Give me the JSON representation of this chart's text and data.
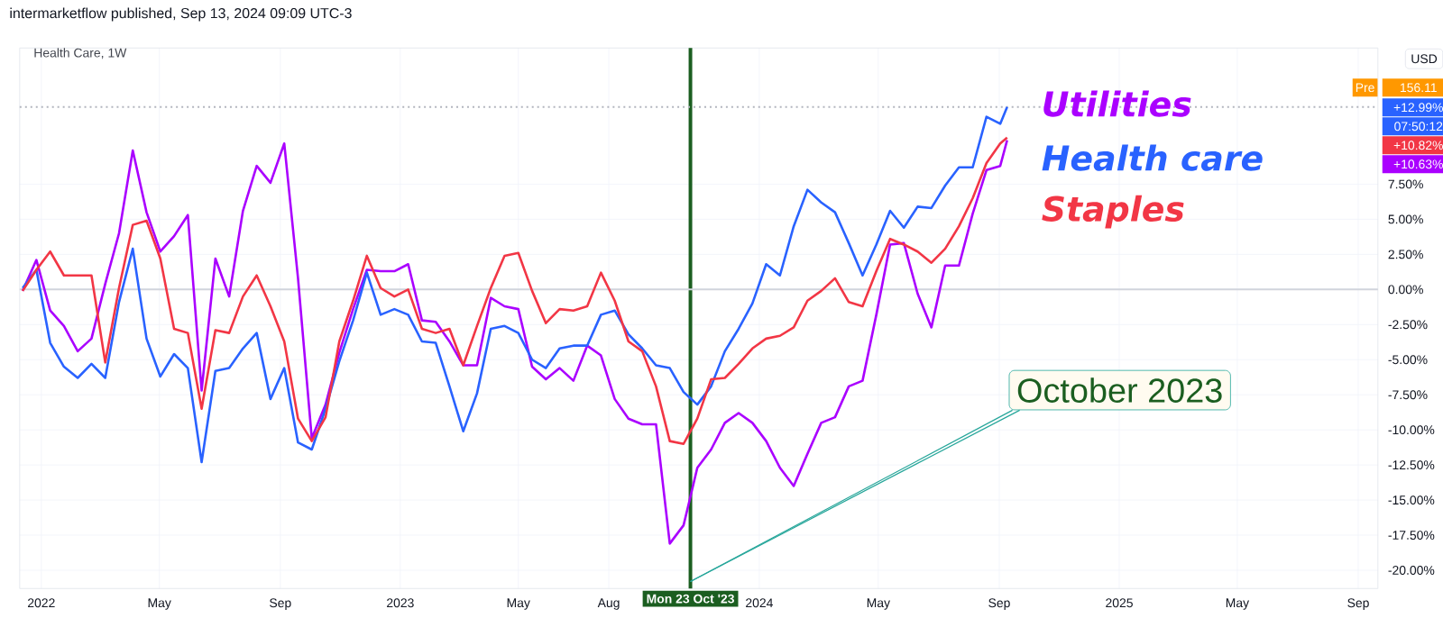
{
  "chart_data": {
    "type": "line",
    "title": "intermarketflow published, Sep 13, 2024 09:09 UTC-3",
    "subtitle": "Health Care, 1W",
    "ylabel": "USD",
    "annotations": [
      {
        "text": "October 2023",
        "x": "2023-10-23",
        "y": -20.8
      },
      "Pre",
      "156.11",
      "+12.99%",
      "07:50:12",
      "+10.82%",
      "+10.63%"
    ],
    "x": [
      "2021-12-13",
      "2021-12-27",
      "2022-01-10",
      "2022-01-24",
      "2022-02-07",
      "2022-02-21",
      "2022-03-07",
      "2022-03-21",
      "2022-04-04",
      "2022-04-18",
      "2022-05-02",
      "2022-05-16",
      "2022-05-30",
      "2022-06-13",
      "2022-06-27",
      "2022-07-11",
      "2022-07-25",
      "2022-08-08",
      "2022-08-22",
      "2022-09-05",
      "2022-09-19",
      "2022-10-03",
      "2022-10-17",
      "2022-10-31",
      "2022-11-14",
      "2022-11-28",
      "2022-12-12",
      "2022-12-26",
      "2023-01-09",
      "2023-01-23",
      "2023-02-06",
      "2023-02-20",
      "2023-03-06",
      "2023-03-20",
      "2023-04-03",
      "2023-04-17",
      "2023-05-01",
      "2023-05-15",
      "2023-05-29",
      "2023-06-12",
      "2023-06-26",
      "2023-07-10",
      "2023-07-24",
      "2023-08-07",
      "2023-08-21",
      "2023-09-04",
      "2023-09-18",
      "2023-10-02",
      "2023-10-16",
      "2023-10-30",
      "2023-11-13",
      "2023-11-27",
      "2023-12-11",
      "2023-12-25",
      "2024-01-08",
      "2024-01-22",
      "2024-02-05",
      "2024-02-19",
      "2024-03-04",
      "2024-03-18",
      "2024-04-01",
      "2024-04-15",
      "2024-04-29",
      "2024-05-13",
      "2024-05-27",
      "2024-06-10",
      "2024-06-24",
      "2024-07-08",
      "2024-07-22",
      "2024-08-05",
      "2024-08-19",
      "2024-09-02",
      "2024-09-09"
    ],
    "series": [
      {
        "name": "Utilities",
        "color": "#aa00ff",
        "values": [
          -0.1,
          2.1,
          -1.5,
          -2.6,
          -4.4,
          -3.5,
          0.4,
          4.0,
          9.9,
          5.5,
          2.7,
          3.8,
          5.3,
          -7.2,
          2.2,
          -0.5,
          5.6,
          8.8,
          7.6,
          10.4,
          0.8,
          -10.6,
          -8.2,
          -4.5,
          -1.4,
          1.4,
          1.3,
          1.3,
          1.8,
          -2.2,
          -2.3,
          -3.7,
          -5.4,
          -5.4,
          -0.6,
          -1.2,
          -1.4,
          -5.5,
          -6.4,
          -5.6,
          -6.5,
          -4.0,
          -4.7,
          -7.8,
          -9.2,
          -9.6,
          -9.6,
          -18.1,
          -16.8,
          -12.7,
          -11.4,
          -9.5,
          -8.8,
          -9.5,
          -10.8,
          -12.7,
          -14.0,
          -11.7,
          -9.5,
          -9.1,
          -6.9,
          -6.5,
          -1.8,
          3.2,
          3.3,
          -0.3,
          -2.7,
          1.7,
          1.7,
          5.4,
          8.5,
          8.8,
          10.63
        ]
      },
      {
        "name": "Health care",
        "color": "#2962ff",
        "values": [
          0.1,
          1.4,
          -3.8,
          -5.5,
          -6.3,
          -5.3,
          -6.3,
          -0.9,
          2.9,
          -3.5,
          -6.2,
          -4.6,
          -5.6,
          -12.3,
          -5.8,
          -5.6,
          -4.2,
          -3.1,
          -7.8,
          -5.6,
          -10.9,
          -11.4,
          -8.5,
          -5.1,
          -2.2,
          1.2,
          -1.8,
          -1.4,
          -1.8,
          -3.7,
          -3.8,
          -6.9,
          -10.1,
          -7.4,
          -2.8,
          -2.6,
          -3.1,
          -5.0,
          -5.6,
          -4.2,
          -4.0,
          -4.0,
          -1.8,
          -1.5,
          -3.2,
          -4.2,
          -5.4,
          -5.6,
          -7.3,
          -8.2,
          -6.9,
          -4.4,
          -2.8,
          -1.0,
          1.8,
          1.0,
          4.5,
          7.1,
          6.2,
          5.5,
          3.3,
          1.0,
          3.2,
          5.6,
          4.4,
          5.9,
          5.8,
          7.4,
          8.7,
          8.7,
          12.3,
          11.8,
          12.99
        ]
      },
      {
        "name": "Staples",
        "color": "#f23645",
        "values": [
          -0.1,
          1.4,
          2.7,
          1.0,
          1.0,
          1.0,
          -5.2,
          0.1,
          4.6,
          4.9,
          2.2,
          -2.8,
          -3.1,
          -8.5,
          -2.9,
          -3.1,
          -0.5,
          1.0,
          -1.2,
          -3.7,
          -9.2,
          -10.8,
          -9.1,
          -3.7,
          -0.8,
          2.4,
          0.1,
          -0.5,
          0.0,
          -2.8,
          -3.1,
          -2.8,
          -5.4,
          -2.6,
          0.1,
          2.4,
          2.6,
          -0.1,
          -2.4,
          -1.4,
          -1.5,
          -1.2,
          1.2,
          -0.8,
          -3.7,
          -4.4,
          -6.9,
          -10.8,
          -11.0,
          -9.2,
          -6.4,
          -6.3,
          -5.3,
          -4.2,
          -3.5,
          -3.3,
          -2.7,
          -0.8,
          -0.1,
          0.8,
          -0.9,
          -1.2,
          1.3,
          3.6,
          3.2,
          2.7,
          1.9,
          2.9,
          4.5,
          6.5,
          9.0,
          10.4,
          10.82
        ]
      }
    ],
    "xlim": [
      "2021-12-10",
      "2025-09-21"
    ],
    "ylim": [
      -21.3,
      17.2
    ],
    "xticks": [
      {
        "value": "2022-01-01",
        "label": "2022"
      },
      {
        "value": "2022-05-01",
        "label": "May"
      },
      {
        "value": "2022-09-01",
        "label": "Sep"
      },
      {
        "value": "2023-01-01",
        "label": "2023"
      },
      {
        "value": "2023-05-01",
        "label": "May"
      },
      {
        "value": "2023-08-01",
        "label": "Aug"
      },
      {
        "value": "2024-01-01",
        "label": "2024"
      },
      {
        "value": "2024-05-01",
        "label": "May"
      },
      {
        "value": "2024-09-01",
        "label": "Sep"
      },
      {
        "value": "2025-01-01",
        "label": "2025"
      },
      {
        "value": "2025-05-01",
        "label": "May"
      },
      {
        "value": "2025-09-01",
        "label": "Sep"
      }
    ],
    "yticks": [
      {
        "value": -20,
        "label": "-20.00%"
      },
      {
        "value": -17.5,
        "label": "-17.50%"
      },
      {
        "value": -15,
        "label": "-15.00%"
      },
      {
        "value": -12.5,
        "label": "-12.50%"
      },
      {
        "value": -10,
        "label": "-10.00%"
      },
      {
        "value": -7.5,
        "label": "-7.50%"
      },
      {
        "value": -5,
        "label": "-5.00%"
      },
      {
        "value": -2.5,
        "label": "-2.50%"
      },
      {
        "value": 0,
        "label": "0.00%"
      },
      {
        "value": 2.5,
        "label": "2.50%"
      },
      {
        "value": 5,
        "label": "5.00%"
      },
      {
        "value": 7.5,
        "label": "7.50%"
      }
    ],
    "ref_lines": [
      {
        "axis": "x",
        "value": "2023-10-23",
        "label": "Mon 23 Oct '23",
        "color": "#1b5e20"
      },
      {
        "axis": "y",
        "value": 0,
        "color": "#d1d4dc",
        "line_style": "solid"
      },
      {
        "axis": "y",
        "value": 12.99,
        "color": "#b2b5be",
        "line_style": "dotted"
      }
    ],
    "grid": true,
    "marker": "none",
    "line_style": "solid"
  }
}
